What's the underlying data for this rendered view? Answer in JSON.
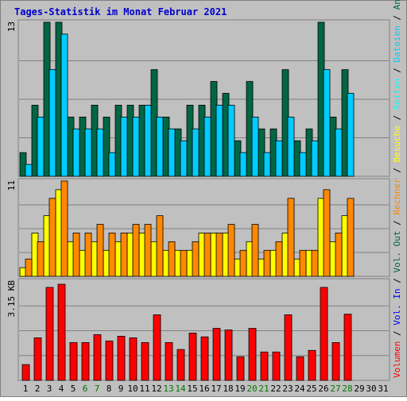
{
  "title": "Tages-Statistik im Monat Februar 2021",
  "colors": {
    "background": "#ffffff",
    "panel": "#c0c0c0",
    "border": "#808080",
    "gridline": "#808080",
    "title": "#0000cc",
    "text": "#000000",
    "weekend_day": "#007700",
    "anfragen": "#006644",
    "dateien": "#00ccff",
    "seiten": "#00ffff",
    "besuche": "#ffff00",
    "rechner": "#ff8800",
    "vol_out": "#006644",
    "vol_in": "#0000ff",
    "volumen": "#ff0000"
  },
  "chart_data": [
    {
      "type": "bar",
      "panel": "hits",
      "ymax_label": "13",
      "ylim": [
        0,
        13
      ],
      "x": [
        1,
        2,
        3,
        4,
        5,
        6,
        7,
        8,
        9,
        10,
        11,
        12,
        13,
        14,
        15,
        16,
        17,
        18,
        19,
        20,
        21,
        22,
        23,
        24,
        25,
        26,
        27,
        28,
        29,
        30,
        31
      ],
      "series": [
        {
          "name": "Anfragen",
          "values": [
            2,
            6,
            13,
            13,
            5,
            5,
            6,
            5,
            6,
            6,
            6,
            9,
            5,
            4,
            6,
            6,
            8,
            7,
            3,
            8,
            4,
            4,
            9,
            3,
            4,
            13,
            5,
            9,
            null,
            null,
            null
          ]
        },
        {
          "name": "Dateien",
          "values": [
            1,
            5,
            9,
            12,
            4,
            4,
            4,
            2,
            5,
            5,
            6,
            5,
            4,
            3,
            4,
            5,
            6,
            6,
            2,
            5,
            2,
            3,
            5,
            2,
            3,
            9,
            4,
            7,
            null,
            null,
            null
          ]
        }
      ],
      "right_label": [
        {
          "text": "Volumen",
          "color_key": "volumen"
        },
        {
          "text": " / ",
          "color_key": "text"
        },
        {
          "text": "Vol. In",
          "color_key": "vol_in"
        },
        {
          "text": " / ",
          "color_key": "text"
        },
        {
          "text": "Vol. Out",
          "color_key": "vol_out"
        },
        {
          "text": " / ",
          "color_key": "text"
        },
        {
          "text": "Rechner",
          "color_key": "rechner"
        },
        {
          "text": " / ",
          "color_key": "text"
        },
        {
          "text": "Besuche",
          "color_key": "besuche"
        },
        {
          "text": " / ",
          "color_key": "text"
        },
        {
          "text": "Seiten",
          "color_key": "seiten"
        },
        {
          "text": " / ",
          "color_key": "text"
        },
        {
          "text": "Dateien",
          "color_key": "dateien"
        },
        {
          "text": " / ",
          "color_key": "text"
        },
        {
          "text": "Anfragen",
          "color_key": "anfragen"
        }
      ]
    },
    {
      "type": "bar",
      "panel": "visits",
      "ymax_label": "11",
      "ylim": [
        0,
        11
      ],
      "series": [
        {
          "name": "Besuche",
          "values": [
            1,
            5,
            7,
            10,
            4,
            3,
            4,
            3,
            4,
            5,
            5,
            4,
            3,
            3,
            3,
            5,
            5,
            5,
            2,
            4,
            2,
            3,
            5,
            2,
            3,
            9,
            4,
            7,
            null,
            null,
            null
          ]
        },
        {
          "name": "Rechner",
          "values": [
            2,
            4,
            9,
            11,
            5,
            5,
            6,
            5,
            5,
            6,
            6,
            7,
            4,
            3,
            4,
            5,
            5,
            6,
            3,
            6,
            3,
            4,
            9,
            3,
            3,
            10,
            5,
            9,
            null,
            null,
            null
          ]
        }
      ]
    },
    {
      "type": "bar",
      "panel": "volume",
      "ymax_label": "3.15 KB",
      "ylim": [
        0,
        3.15
      ],
      "series": [
        {
          "name": "Volumen",
          "values": [
            0.5,
            1.35,
            2.95,
            3.05,
            1.2,
            1.2,
            1.45,
            1.25,
            1.4,
            1.35,
            1.2,
            2.08,
            1.2,
            0.98,
            1.5,
            1.38,
            1.65,
            1.6,
            0.75,
            1.65,
            0.9,
            0.9,
            2.08,
            0.75,
            0.95,
            2.95,
            1.2,
            2.1,
            null,
            null,
            null
          ]
        }
      ]
    }
  ],
  "days": [
    {
      "label": "1",
      "weekend": false
    },
    {
      "label": "2",
      "weekend": false
    },
    {
      "label": "3",
      "weekend": false
    },
    {
      "label": "4",
      "weekend": false
    },
    {
      "label": "5",
      "weekend": false
    },
    {
      "label": "6",
      "weekend": true
    },
    {
      "label": "7",
      "weekend": true
    },
    {
      "label": "8",
      "weekend": false
    },
    {
      "label": "9",
      "weekend": false
    },
    {
      "label": "10",
      "weekend": false
    },
    {
      "label": "11",
      "weekend": false
    },
    {
      "label": "12",
      "weekend": false
    },
    {
      "label": "13",
      "weekend": true
    },
    {
      "label": "14",
      "weekend": true
    },
    {
      "label": "15",
      "weekend": false
    },
    {
      "label": "16",
      "weekend": false
    },
    {
      "label": "17",
      "weekend": false
    },
    {
      "label": "18",
      "weekend": false
    },
    {
      "label": "19",
      "weekend": false
    },
    {
      "label": "20",
      "weekend": true
    },
    {
      "label": "21",
      "weekend": true
    },
    {
      "label": "22",
      "weekend": false
    },
    {
      "label": "23",
      "weekend": false
    },
    {
      "label": "24",
      "weekend": false
    },
    {
      "label": "25",
      "weekend": false
    },
    {
      "label": "26",
      "weekend": false
    },
    {
      "label": "27",
      "weekend": true
    },
    {
      "label": "28",
      "weekend": true
    },
    {
      "label": "29",
      "weekend": false
    },
    {
      "label": "30",
      "weekend": false
    },
    {
      "label": "31",
      "weekend": false
    }
  ]
}
